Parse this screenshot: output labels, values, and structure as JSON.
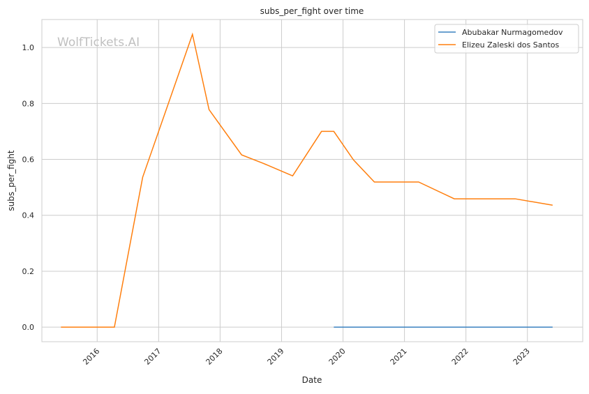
{
  "watermark": "WolfTickets.AI",
  "chart_data": {
    "type": "line",
    "title": "subs_per_fight over time",
    "xlabel": "Date",
    "ylabel": "subs_per_fight",
    "xlim": [
      2015.1,
      2023.9
    ],
    "ylim": [
      -0.052,
      1.1
    ],
    "x_ticks": [
      "2016",
      "2017",
      "2018",
      "2019",
      "2020",
      "2021",
      "2022",
      "2023"
    ],
    "y_ticks": [
      "0.0",
      "0.2",
      "0.4",
      "0.6",
      "0.8",
      "1.0"
    ],
    "grid": true,
    "legend_position": "top-right",
    "series": [
      {
        "name": "Abubakar Nurmagomedov",
        "color": "#3a82c0",
        "x": [
          2019.85,
          2023.41
        ],
        "y": [
          0.0,
          0.0
        ]
      },
      {
        "name": "Elizeu Zaleski dos Santos",
        "color": "#ff7f0e",
        "x": [
          2015.41,
          2016.28,
          2016.74,
          2017.55,
          2017.82,
          2018.35,
          2018.7,
          2019.18,
          2019.65,
          2019.85,
          2020.17,
          2020.51,
          2021.23,
          2021.81,
          2022.8,
          2023.41
        ],
        "y": [
          0.0,
          0.0,
          0.536,
          1.047,
          0.778,
          0.616,
          0.586,
          0.541,
          0.7,
          0.7,
          0.598,
          0.519,
          0.519,
          0.459,
          0.459,
          0.436
        ]
      }
    ]
  }
}
